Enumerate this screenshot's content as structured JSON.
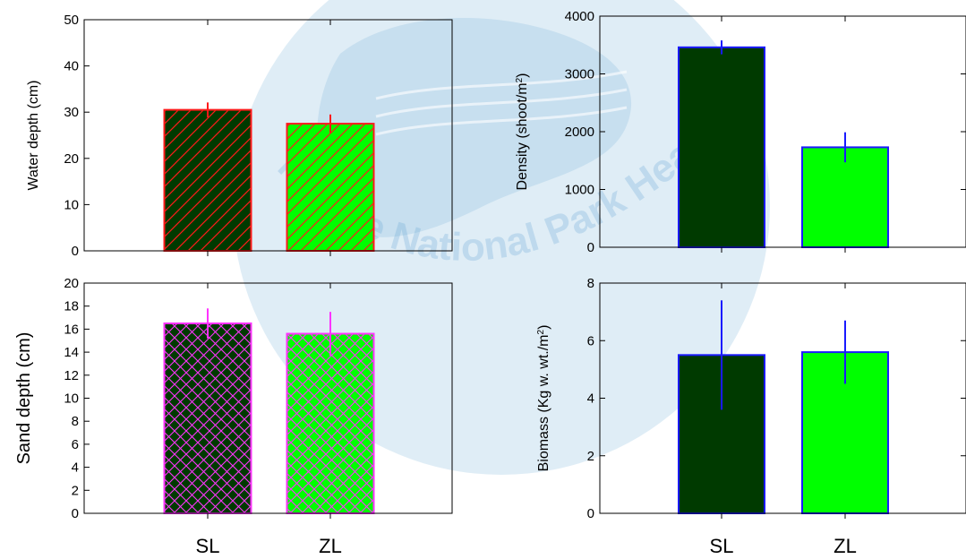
{
  "watermark": {
    "text": "Marine National Park Headquarters",
    "color": "#7fb6dc"
  },
  "colors": {
    "dark_green": "#003a00",
    "bright_green": "#00ff00",
    "red": "#ff1a1a",
    "magenta": "#ff33ff",
    "blue": "#1a1aff"
  },
  "chart_data": [
    {
      "type": "bar",
      "panel": "top-left",
      "categories": [
        "SL",
        "ZL"
      ],
      "values": [
        30.5,
        27.5
      ],
      "errors": [
        1.6,
        2.0
      ],
      "ylabel": "Water depth (cm)",
      "ylim": [
        0,
        50
      ],
      "yticks": [
        "0",
        "10",
        "20",
        "30",
        "40",
        "50"
      ],
      "pattern": "diagonal-hatch",
      "edge_color": "#ff1a1a",
      "show_xlabels": false
    },
    {
      "type": "bar",
      "panel": "bottom-left",
      "categories": [
        "SL",
        "ZL"
      ],
      "values": [
        16.5,
        15.6
      ],
      "errors": [
        1.3,
        1.9
      ],
      "ylabel": "Sand depth (cm)",
      "ylim": [
        0,
        20
      ],
      "yticks": [
        "0",
        "2",
        "4",
        "6",
        "8",
        "10",
        "12",
        "14",
        "16",
        "18",
        "20"
      ],
      "pattern": "crosshatch",
      "edge_color": "#ff33ff",
      "show_xlabels": true
    },
    {
      "type": "bar",
      "panel": "top-right",
      "categories": [
        "SL",
        "ZL"
      ],
      "values": [
        3460,
        1730
      ],
      "errors": [
        120,
        260
      ],
      "ylabel": "Density (shoot/m",
      "ylabel_sup": "2",
      "ylabel_tail": ")",
      "ylim": [
        0,
        4000
      ],
      "yticks": [
        "0",
        "1000",
        "2000",
        "3000",
        "4000"
      ],
      "pattern": "solid",
      "edge_color": "#1a1aff",
      "show_xlabels": false
    },
    {
      "type": "bar",
      "panel": "bottom-right",
      "categories": [
        "SL",
        "ZL"
      ],
      "values": [
        5.5,
        5.6
      ],
      "errors": [
        1.9,
        1.1
      ],
      "ylabel": "Biomass (Kg w. wt./m",
      "ylabel_sup": "2",
      "ylabel_tail": ")",
      "ylim": [
        0,
        8
      ],
      "yticks": [
        "0",
        "2",
        "4",
        "6",
        "8"
      ],
      "pattern": "solid",
      "edge_color": "#1a1aff",
      "show_xlabels": true
    }
  ]
}
